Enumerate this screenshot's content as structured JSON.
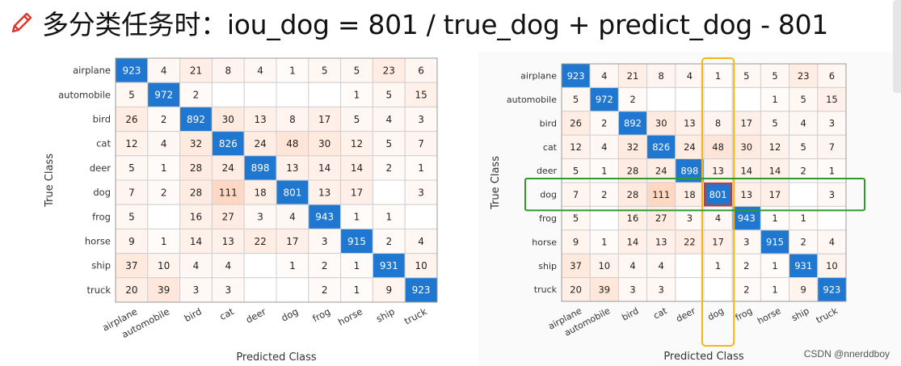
{
  "header": {
    "title": "多分类任务时：iou_dog = 801 / true_dog + predict_dog - 801",
    "icon": "pencil-icon",
    "icon_color": "#e0352b"
  },
  "watermark": "CSDN @nnerddboy",
  "colors": {
    "diagonal": "#1f77d0",
    "offdiag_max": "#f5d2c0",
    "cell_border": "#d0d0d0",
    "highlight_column": "#f5b41a",
    "highlight_row": "#2e9a2e",
    "highlight_cell": "#e03020"
  },
  "chart_data": [
    {
      "type": "heatmap",
      "title": "",
      "xlabel": "Predicted Class",
      "ylabel": "True Class",
      "x_categories": [
        "airplane",
        "automobile",
        "bird",
        "cat",
        "deer",
        "dog",
        "frog",
        "horse",
        "ship",
        "truck"
      ],
      "y_categories": [
        "airplane",
        "automobile",
        "bird",
        "cat",
        "deer",
        "dog",
        "frog",
        "horse",
        "ship",
        "truck"
      ],
      "values": [
        [
          923,
          4,
          21,
          8,
          4,
          1,
          5,
          5,
          23,
          6
        ],
        [
          5,
          972,
          2,
          null,
          null,
          null,
          null,
          1,
          5,
          15
        ],
        [
          26,
          2,
          892,
          30,
          13,
          8,
          17,
          5,
          4,
          3
        ],
        [
          12,
          4,
          32,
          826,
          24,
          48,
          30,
          12,
          5,
          7
        ],
        [
          5,
          1,
          28,
          24,
          898,
          13,
          14,
          14,
          2,
          1
        ],
        [
          7,
          2,
          28,
          111,
          18,
          801,
          13,
          17,
          null,
          3
        ],
        [
          5,
          null,
          16,
          27,
          3,
          4,
          943,
          1,
          1,
          null
        ],
        [
          9,
          1,
          14,
          13,
          22,
          17,
          3,
          915,
          2,
          4
        ],
        [
          37,
          10,
          4,
          4,
          null,
          1,
          2,
          1,
          931,
          10
        ],
        [
          20,
          39,
          3,
          3,
          null,
          null,
          2,
          1,
          9,
          923
        ]
      ]
    },
    {
      "type": "heatmap",
      "title": "",
      "xlabel": "Predicted Class",
      "ylabel": "True Class",
      "x_categories": [
        "airplane",
        "automobile",
        "bird",
        "cat",
        "deer",
        "dog",
        "frog",
        "horse",
        "ship",
        "truck"
      ],
      "y_categories": [
        "airplane",
        "automobile",
        "bird",
        "cat",
        "deer",
        "dog",
        "frog",
        "horse",
        "ship",
        "truck"
      ],
      "values": [
        [
          923,
          4,
          21,
          8,
          4,
          1,
          5,
          5,
          23,
          6
        ],
        [
          5,
          972,
          2,
          null,
          null,
          null,
          null,
          1,
          5,
          15
        ],
        [
          26,
          2,
          892,
          30,
          13,
          8,
          17,
          5,
          4,
          3
        ],
        [
          12,
          4,
          32,
          826,
          24,
          48,
          30,
          12,
          5,
          7
        ],
        [
          5,
          1,
          28,
          24,
          898,
          13,
          14,
          14,
          2,
          1
        ],
        [
          7,
          2,
          28,
          111,
          18,
          801,
          13,
          17,
          null,
          3
        ],
        [
          5,
          null,
          16,
          27,
          3,
          4,
          943,
          1,
          1,
          null
        ],
        [
          9,
          1,
          14,
          13,
          22,
          17,
          3,
          915,
          2,
          4
        ],
        [
          37,
          10,
          4,
          4,
          null,
          1,
          2,
          1,
          931,
          10
        ],
        [
          20,
          39,
          3,
          3,
          null,
          null,
          2,
          1,
          9,
          923
        ]
      ],
      "highlight": {
        "column": "dog",
        "row": "dog",
        "cell": [
          "dog",
          "dog"
        ]
      }
    }
  ]
}
